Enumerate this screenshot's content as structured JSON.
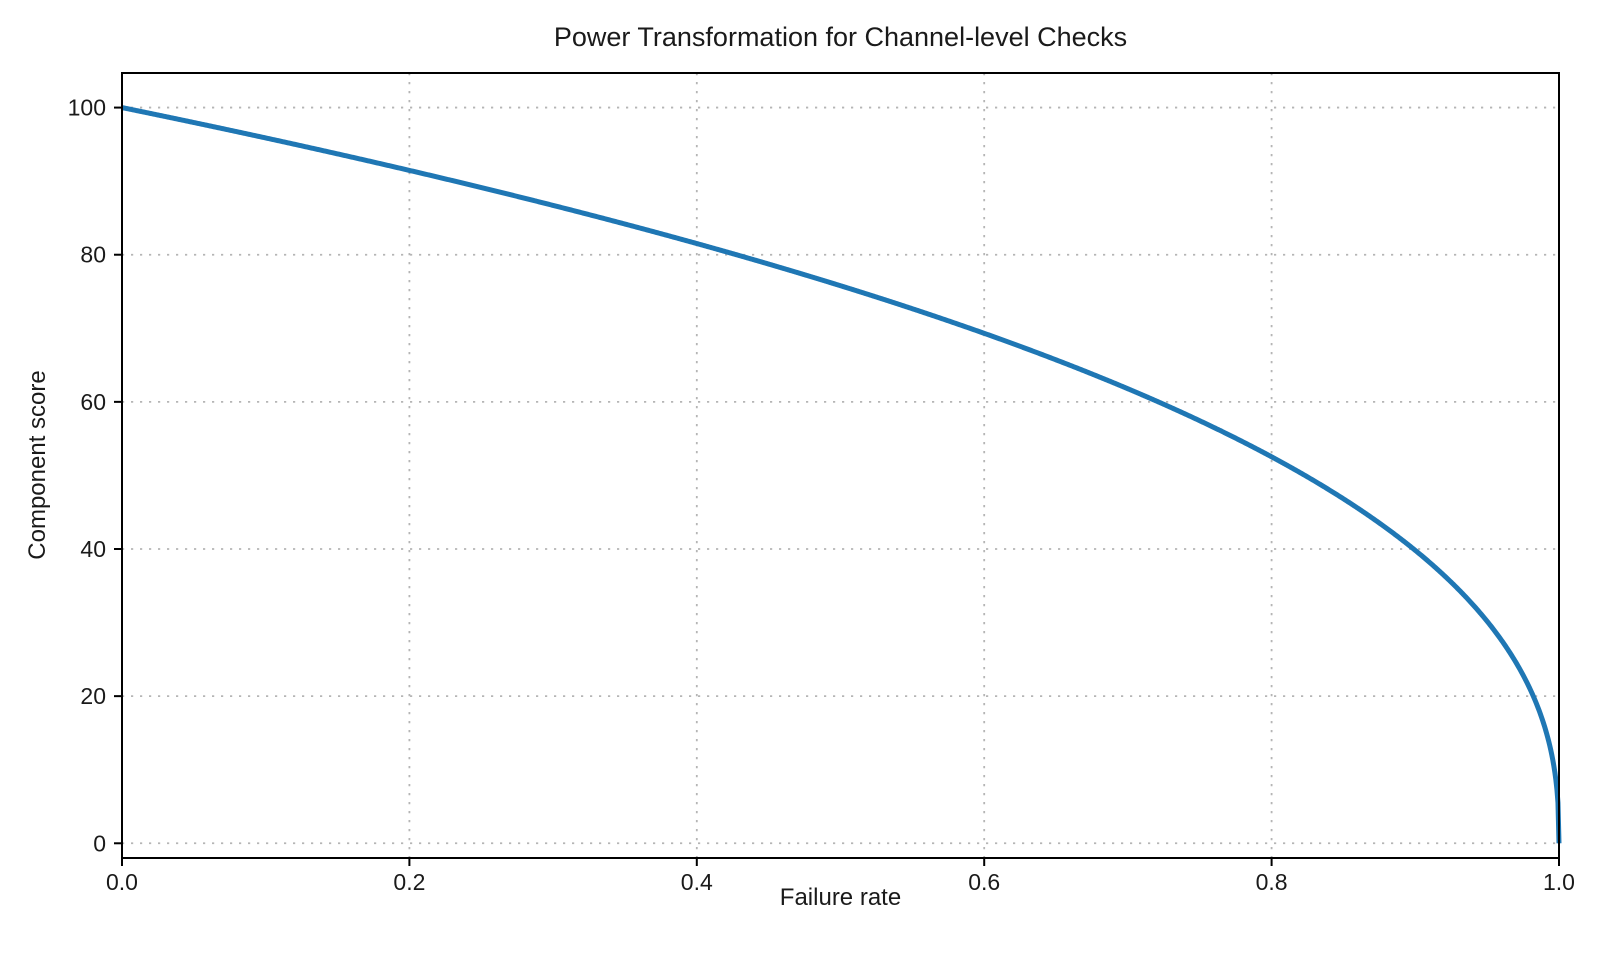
{
  "chart_data": {
    "type": "line",
    "title": "Power Transformation for Channel-level Checks",
    "xlabel": "Failure rate",
    "ylabel": "Component score",
    "xlim": [
      0,
      1
    ],
    "ylim": [
      -2,
      104.7
    ],
    "x_ticks": {
      "values": [
        0,
        0.2,
        0.4,
        0.6,
        0.8,
        1.0
      ],
      "labels": [
        "0.0",
        "0.2",
        "0.4",
        "0.6",
        "0.8",
        "1.0"
      ]
    },
    "y_ticks": {
      "values": [
        0,
        20,
        40,
        60,
        80,
        100
      ],
      "labels": [
        "0",
        "20",
        "40",
        "60",
        "80",
        "100"
      ]
    },
    "grid": true,
    "grid_style": "dotted",
    "legend": "none",
    "colors": {
      "line": "#1f77b4",
      "grid": "#b5b5b5",
      "spine": "#000000",
      "text": "#1a1a1a",
      "background": "#ffffff"
    },
    "series": [
      {
        "name": "Component score",
        "color": "#1f77b4",
        "line_width": 5,
        "formula": {
          "type": "power",
          "expression": "y = 100 * (1 - x)^0.4",
          "scale": 100,
          "exponent": 0.4
        },
        "points": [
          [
            0,
            100
          ],
          [
            0.05,
            98.0
          ],
          [
            0.1,
            95.9
          ],
          [
            0.15,
            93.7
          ],
          [
            0.2,
            91.5
          ],
          [
            0.25,
            89.1
          ],
          [
            0.3,
            86.7
          ],
          [
            0.35,
            84.2
          ],
          [
            0.4,
            81.5
          ],
          [
            0.45,
            78.7
          ],
          [
            0.5,
            75.8
          ],
          [
            0.55,
            72.7
          ],
          [
            0.6,
            69.3
          ],
          [
            0.65,
            65.7
          ],
          [
            0.7,
            61.8
          ],
          [
            0.75,
            57.4
          ],
          [
            0.8,
            52.5
          ],
          [
            0.85,
            46.8
          ],
          [
            0.9,
            39.8
          ],
          [
            0.95,
            30.2
          ],
          [
            0.99,
            15.8
          ],
          [
            1,
            0
          ]
        ]
      }
    ]
  }
}
